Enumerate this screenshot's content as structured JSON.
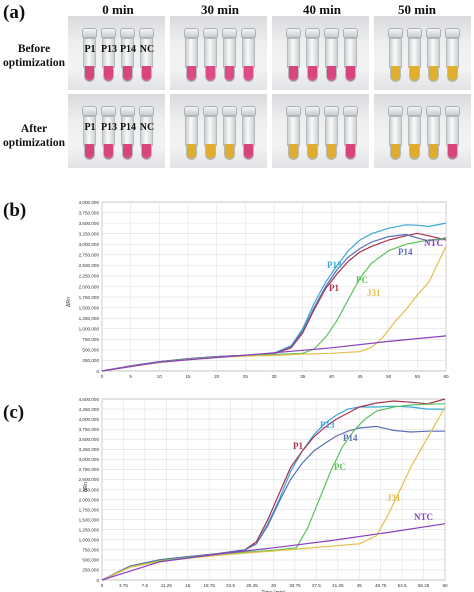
{
  "panels": {
    "a": {
      "letter": "(a)",
      "times": [
        "0 min",
        "30 min",
        "40 min",
        "50 min"
      ],
      "rows": [
        "Before optimization",
        "After optimization"
      ],
      "tube_labels": [
        "P1",
        "P13",
        "P14",
        "NC"
      ],
      "tube_colors": {
        "before": [
          [
            "#d8457a",
            "#d8457a",
            "#d8457a",
            "#d8457a"
          ],
          [
            "#dd4a86",
            "#dd4a86",
            "#dd4a86",
            "#dd4a86"
          ],
          [
            "#d9467f",
            "#d9467f",
            "#d9467f",
            "#d9467f"
          ],
          [
            "#e0b02a",
            "#e0b02a",
            "#e0b02a",
            "#e0b02a"
          ]
        ],
        "after": [
          [
            "#d8457a",
            "#d8457a",
            "#d8457a",
            "#d8457a"
          ],
          [
            "#e0ad2e",
            "#e0ad2e",
            "#e0ad2e",
            "#d8457a"
          ],
          [
            "#e0ad2e",
            "#e0ad2e",
            "#e0ad2e",
            "#d8457a"
          ],
          [
            "#e1ac2c",
            "#e1ac2c",
            "#e1ac2c",
            "#d8457a"
          ]
        ]
      }
    },
    "b": {
      "letter": "(b)"
    },
    "c": {
      "letter": "(c)"
    }
  },
  "chart_data": [
    {
      "type": "line",
      "ylabel": "ΔRn",
      "xlabel": "Time (min)",
      "xlim": [
        0,
        60
      ],
      "ylim": [
        0,
        4000000
      ],
      "xticks": [
        "0",
        "5",
        "10",
        "15",
        "20",
        "25",
        "30",
        "35",
        "40",
        "45",
        "50",
        "55",
        "60"
      ],
      "yticks": [
        "0",
        "250,000",
        "500,000",
        "750,000",
        "1,000,000",
        "1,250,000",
        "1,500,000",
        "1,750,000",
        "2,000,000",
        "2,250,000",
        "2,500,000",
        "2,750,000",
        "3,000,000",
        "3,250,000",
        "3,500,000",
        "3,750,000",
        "4,000,000"
      ],
      "series": [
        {
          "name": "P13",
          "color": "#3aa8d8",
          "label": "P13",
          "x": [
            0,
            5,
            10,
            15,
            20,
            25,
            30,
            33,
            35,
            37,
            39,
            41,
            43,
            45,
            47,
            50,
            53,
            55,
            57,
            60
          ],
          "y": [
            0,
            120000,
            220000,
            290000,
            340000,
            370000,
            420000,
            600000,
            1000000,
            1600000,
            2100000,
            2500000,
            2850000,
            3100000,
            3250000,
            3380000,
            3460000,
            3450000,
            3420000,
            3500000
          ]
        },
        {
          "name": "P1",
          "color": "#a8324e",
          "label": "P1",
          "x": [
            0,
            5,
            10,
            15,
            20,
            25,
            30,
            33,
            35,
            37,
            39,
            41,
            43,
            45,
            47,
            50,
            53,
            55,
            57,
            60
          ],
          "y": [
            0,
            120000,
            220000,
            290000,
            340000,
            370000,
            410000,
            550000,
            900000,
            1450000,
            1950000,
            2300000,
            2600000,
            2820000,
            2950000,
            3100000,
            3200000,
            3260000,
            3200000,
            3100000
          ]
        },
        {
          "name": "P14",
          "color": "#5b6fb8",
          "label": "P14",
          "x": [
            0,
            5,
            10,
            15,
            20,
            25,
            30,
            33,
            35,
            37,
            39,
            41,
            43,
            45,
            47,
            50,
            53,
            55,
            57,
            60
          ],
          "y": [
            0,
            120000,
            220000,
            290000,
            340000,
            370000,
            420000,
            580000,
            950000,
            1500000,
            2000000,
            2400000,
            2700000,
            2900000,
            3050000,
            3180000,
            3230000,
            3150000,
            3080000,
            3150000
          ]
        },
        {
          "name": "PC",
          "color": "#5cc25c",
          "label": "PC",
          "x": [
            0,
            5,
            10,
            15,
            20,
            25,
            30,
            35,
            37,
            39,
            41,
            43,
            45,
            47,
            50,
            53,
            55,
            57,
            60
          ],
          "y": [
            0,
            110000,
            210000,
            280000,
            330000,
            360000,
            390000,
            420000,
            520000,
            800000,
            1200000,
            1700000,
            2200000,
            2550000,
            2850000,
            3000000,
            3050000,
            3100000,
            3130000
          ]
        },
        {
          "name": "J31",
          "color": "#e2bf4c",
          "label": "J31",
          "x": [
            0,
            5,
            10,
            15,
            20,
            25,
            30,
            35,
            40,
            45,
            47,
            49,
            51,
            53,
            55,
            57,
            60
          ],
          "y": [
            0,
            110000,
            200000,
            270000,
            320000,
            350000,
            370000,
            400000,
            420000,
            460000,
            560000,
            800000,
            1150000,
            1450000,
            1800000,
            2100000,
            2950000
          ]
        },
        {
          "name": "NTC",
          "color": "#8a3fc0",
          "label": "NTC",
          "x": [
            0,
            10,
            20,
            30,
            40,
            50,
            60
          ],
          "y": [
            0,
            210000,
            320000,
            430000,
            550000,
            700000,
            830000
          ]
        }
      ]
    },
    {
      "type": "line",
      "ylabel": "ΔRn",
      "xlabel": "Time (min)",
      "xlim": [
        0,
        60
      ],
      "ylim": [
        0,
        4500000
      ],
      "xticks": [
        "0",
        "3.75",
        "7.5",
        "11.25",
        "15",
        "18.75",
        "22.5",
        "26.25",
        "30",
        "33.75",
        "37.5",
        "41.25",
        "45",
        "48.75",
        "52.5",
        "56.25",
        "60"
      ],
      "yticks": [
        "0",
        "250,000",
        "500,000",
        "750,000",
        "1,000,000",
        "1,250,000",
        "1,500,000",
        "1,750,000",
        "2,000,000",
        "2,250,000",
        "2,500,000",
        "2,750,000",
        "3,000,000",
        "3,250,000",
        "3,500,000",
        "3,750,000",
        "4,000,000",
        "4,250,000",
        "4,500,000"
      ],
      "series": [
        {
          "name": "P13",
          "color": "#3aa8d8",
          "label": "P13",
          "x": [
            0,
            5,
            10,
            15,
            20,
            25,
            27,
            29,
            31,
            33,
            35,
            37,
            39,
            41,
            43,
            45,
            48,
            51,
            54,
            57,
            60
          ],
          "y": [
            0,
            350000,
            500000,
            580000,
            650000,
            750000,
            900000,
            1400000,
            2000000,
            2700000,
            3200000,
            3600000,
            3900000,
            4100000,
            4250000,
            4300000,
            4300000,
            4320000,
            4300000,
            4250000,
            4250000
          ]
        },
        {
          "name": "P1",
          "color": "#a8324e",
          "label": "P1",
          "x": [
            0,
            5,
            10,
            15,
            20,
            25,
            27,
            29,
            31,
            33,
            35,
            37,
            39,
            41,
            43,
            45,
            48,
            51,
            54,
            57,
            60
          ],
          "y": [
            0,
            350000,
            500000,
            580000,
            650000,
            750000,
            950000,
            1500000,
            2150000,
            2800000,
            3200000,
            3550000,
            3800000,
            4000000,
            4150000,
            4300000,
            4400000,
            4450000,
            4420000,
            4380000,
            4500000
          ]
        },
        {
          "name": "P14",
          "color": "#5b6fb8",
          "label": "P14",
          "x": [
            0,
            5,
            10,
            15,
            20,
            25,
            27,
            29,
            31,
            33,
            35,
            37,
            39,
            41,
            43,
            45,
            48,
            51,
            54,
            57,
            60
          ],
          "y": [
            0,
            350000,
            500000,
            580000,
            650000,
            750000,
            900000,
            1350000,
            1950000,
            2500000,
            2900000,
            3200000,
            3400000,
            3580000,
            3700000,
            3780000,
            3820000,
            3720000,
            3680000,
            3700000,
            3700000
          ]
        },
        {
          "name": "PC",
          "color": "#5cc25c",
          "label": "PC",
          "x": [
            0,
            5,
            10,
            15,
            20,
            25,
            30,
            34,
            36,
            38,
            40,
            42,
            44,
            46,
            48,
            51,
            54,
            57,
            60
          ],
          "y": [
            0,
            330000,
            480000,
            560000,
            630000,
            690000,
            740000,
            800000,
            1300000,
            2000000,
            2700000,
            3300000,
            3700000,
            4000000,
            4200000,
            4300000,
            4350000,
            4370000,
            4380000
          ]
        },
        {
          "name": "J31",
          "color": "#e2bf4c",
          "label": "J31",
          "x": [
            0,
            5,
            10,
            15,
            20,
            25,
            30,
            35,
            40,
            45,
            48,
            50,
            52,
            54,
            56,
            58,
            60
          ],
          "y": [
            0,
            320000,
            460000,
            540000,
            610000,
            670000,
            720000,
            780000,
            840000,
            900000,
            1100000,
            1600000,
            2200000,
            2800000,
            3300000,
            3800000,
            4300000
          ]
        },
        {
          "name": "NTC",
          "color": "#8a3fc0",
          "label": "NTC",
          "x": [
            0,
            10,
            20,
            30,
            40,
            50,
            60
          ],
          "y": [
            0,
            450000,
            640000,
            800000,
            980000,
            1180000,
            1400000
          ]
        }
      ]
    }
  ]
}
